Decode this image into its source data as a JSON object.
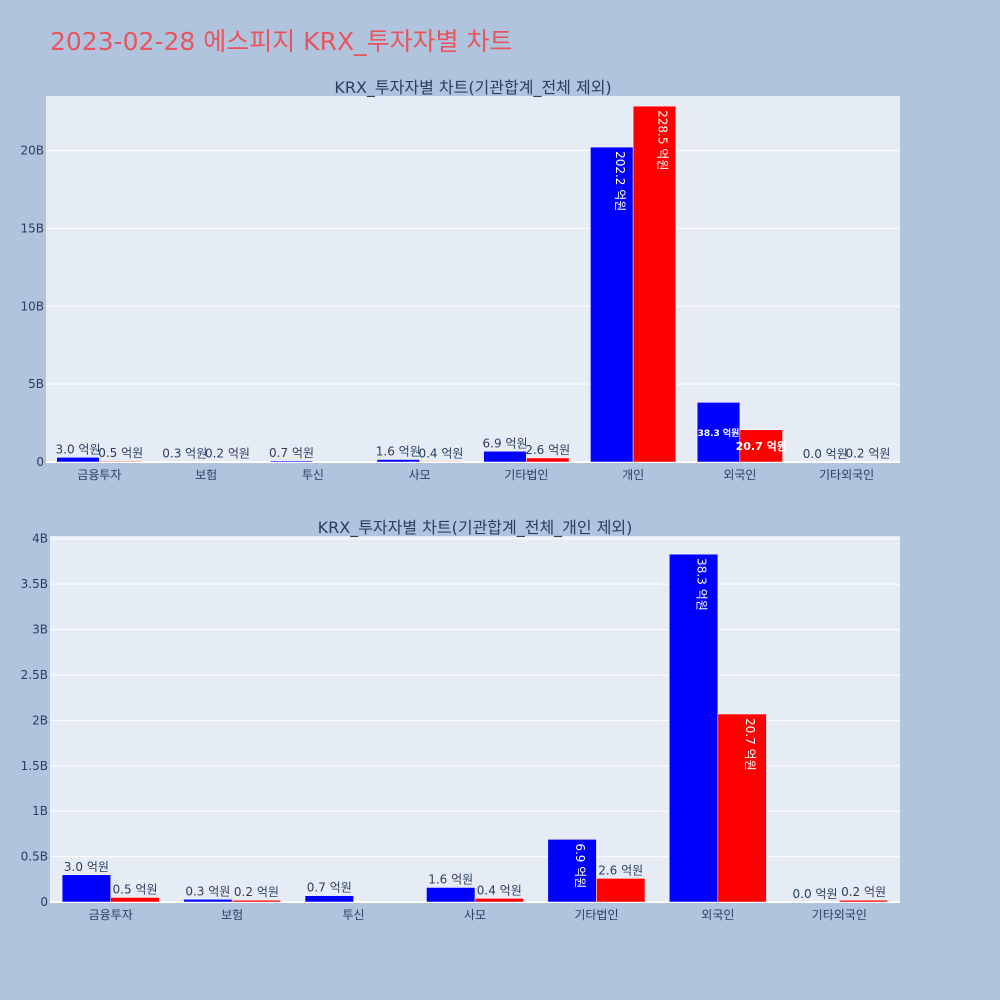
{
  "page_title": "2023-02-28 에스피지 KRX_투자자별 차트",
  "colors": {
    "buy": "#0000ff",
    "sell": "#ff0000",
    "plot_bg": "#e5ecf6",
    "paper_bg": "#b0c4de"
  },
  "chart_data": [
    {
      "type": "bar",
      "title": "KRX_투자자별 차트(기관합계_전체 제외)",
      "categories": [
        "금융투자",
        "보험",
        "투신",
        "사모",
        "기타법인",
        "개인",
        "외국인",
        "기타외국인"
      ],
      "series": [
        {
          "color": "#0000ff",
          "values": [
            300000000,
            30000000,
            70000000,
            160000000,
            690000000,
            20220000000,
            3830000000,
            0
          ],
          "labels": [
            "3.0 억원",
            "0.3 억원",
            "0.7 억원",
            "1.6 억원",
            "6.9 억원",
            "202.2 억원",
            "38.3 억원",
            "0.0 억원"
          ]
        },
        {
          "color": "#ff0000",
          "values": [
            50000000,
            20000000,
            0,
            40000000,
            260000000,
            22850000000,
            2070000000,
            20000000
          ],
          "labels": [
            "0.5 억원",
            "0.2 억원",
            "",
            "0.4 억원",
            "2.6 억원",
            "228.5 억원",
            "20.7 억원",
            "0.2 억원"
          ]
        }
      ],
      "yticks": [
        0,
        5000000000,
        10000000000,
        15000000000,
        20000000000
      ],
      "ytick_labels": [
        "0",
        "5B",
        "10B",
        "15B",
        "20B"
      ],
      "ylim": [
        0,
        23500000000
      ],
      "grid": true
    },
    {
      "type": "bar",
      "title": "KRX_투자자별 차트(기관합계_전체_개인 제외)",
      "categories": [
        "금융투자",
        "보험",
        "투신",
        "사모",
        "기타법인",
        "외국인",
        "기타외국인"
      ],
      "series": [
        {
          "color": "#0000ff",
          "values": [
            300000000,
            30000000,
            70000000,
            160000000,
            690000000,
            3830000000,
            0
          ],
          "labels": [
            "3.0 억원",
            "0.3 억원",
            "0.7 억원",
            "1.6 억원",
            "6.9 억원",
            "38.3 억원",
            "0.0 억원"
          ]
        },
        {
          "color": "#ff0000",
          "values": [
            50000000,
            20000000,
            0,
            40000000,
            260000000,
            2070000000,
            20000000
          ],
          "labels": [
            "0.5 억원",
            "0.2 억원",
            "",
            "0.4 억원",
            "2.6 억원",
            "20.7 억원",
            "0.2 억원"
          ]
        }
      ],
      "yticks": [
        0,
        500000000,
        1000000000,
        1500000000,
        2000000000,
        2500000000,
        3000000000,
        3500000000,
        4000000000
      ],
      "ytick_labels": [
        "0",
        "0.5B",
        "1B",
        "1.5B",
        "2B",
        "2.5B",
        "3B",
        "3.5B",
        "4B"
      ],
      "ylim": [
        0,
        4030000000
      ],
      "grid": true
    }
  ]
}
